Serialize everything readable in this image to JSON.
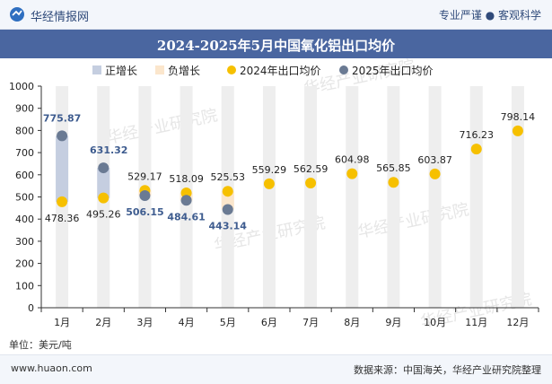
{
  "header": {
    "brand": "华经情报网",
    "tagline": "专业严谨 ● 客观科学"
  },
  "title": "2024-2025年5月中国氧化铝出口均价",
  "unit_label": "单位：美元/吨",
  "footer": {
    "site": "www.huaon.com",
    "source": "数据来源：中国海关，华经产业研究院整理"
  },
  "watermark": "华经产业研究院",
  "colors": {
    "header_bg": "#f3f6fb",
    "title_bg": "#4a66a0",
    "pos_bar": "#c5cee0",
    "neg_bar": "#fbe6cc",
    "bg_column": "#eeeeee",
    "series_2024": "#f6c000",
    "series_2025": "#6a7a93",
    "label_2025": "#3e5c8f"
  },
  "chart_data": {
    "type": "line",
    "categories": [
      "1月",
      "2月",
      "3月",
      "4月",
      "5月",
      "6月",
      "7月",
      "8月",
      "9月",
      "10月",
      "11月",
      "12月"
    ],
    "ylim": [
      0,
      1000
    ],
    "yticks": [
      0,
      100,
      200,
      300,
      400,
      500,
      600,
      700,
      800,
      900,
      1000
    ],
    "legend": [
      "正增长",
      "负增长",
      "2024年出口均价",
      "2025年出口均价"
    ],
    "legend_position": "top",
    "series": [
      {
        "name": "2024年出口均价",
        "values": [
          478.36,
          495.26,
          529.17,
          518.09,
          525.53,
          559.29,
          562.59,
          604.98,
          565.85,
          603.87,
          716.23,
          798.14
        ]
      },
      {
        "name": "2025年出口均价",
        "values": [
          775.87,
          631.32,
          506.15,
          484.61,
          443.14,
          null,
          null,
          null,
          null,
          null,
          null,
          null
        ]
      }
    ],
    "positive_growth_months": [
      "1月",
      "2月"
    ],
    "negative_growth_months": [
      "3月",
      "4月",
      "5月"
    ]
  }
}
